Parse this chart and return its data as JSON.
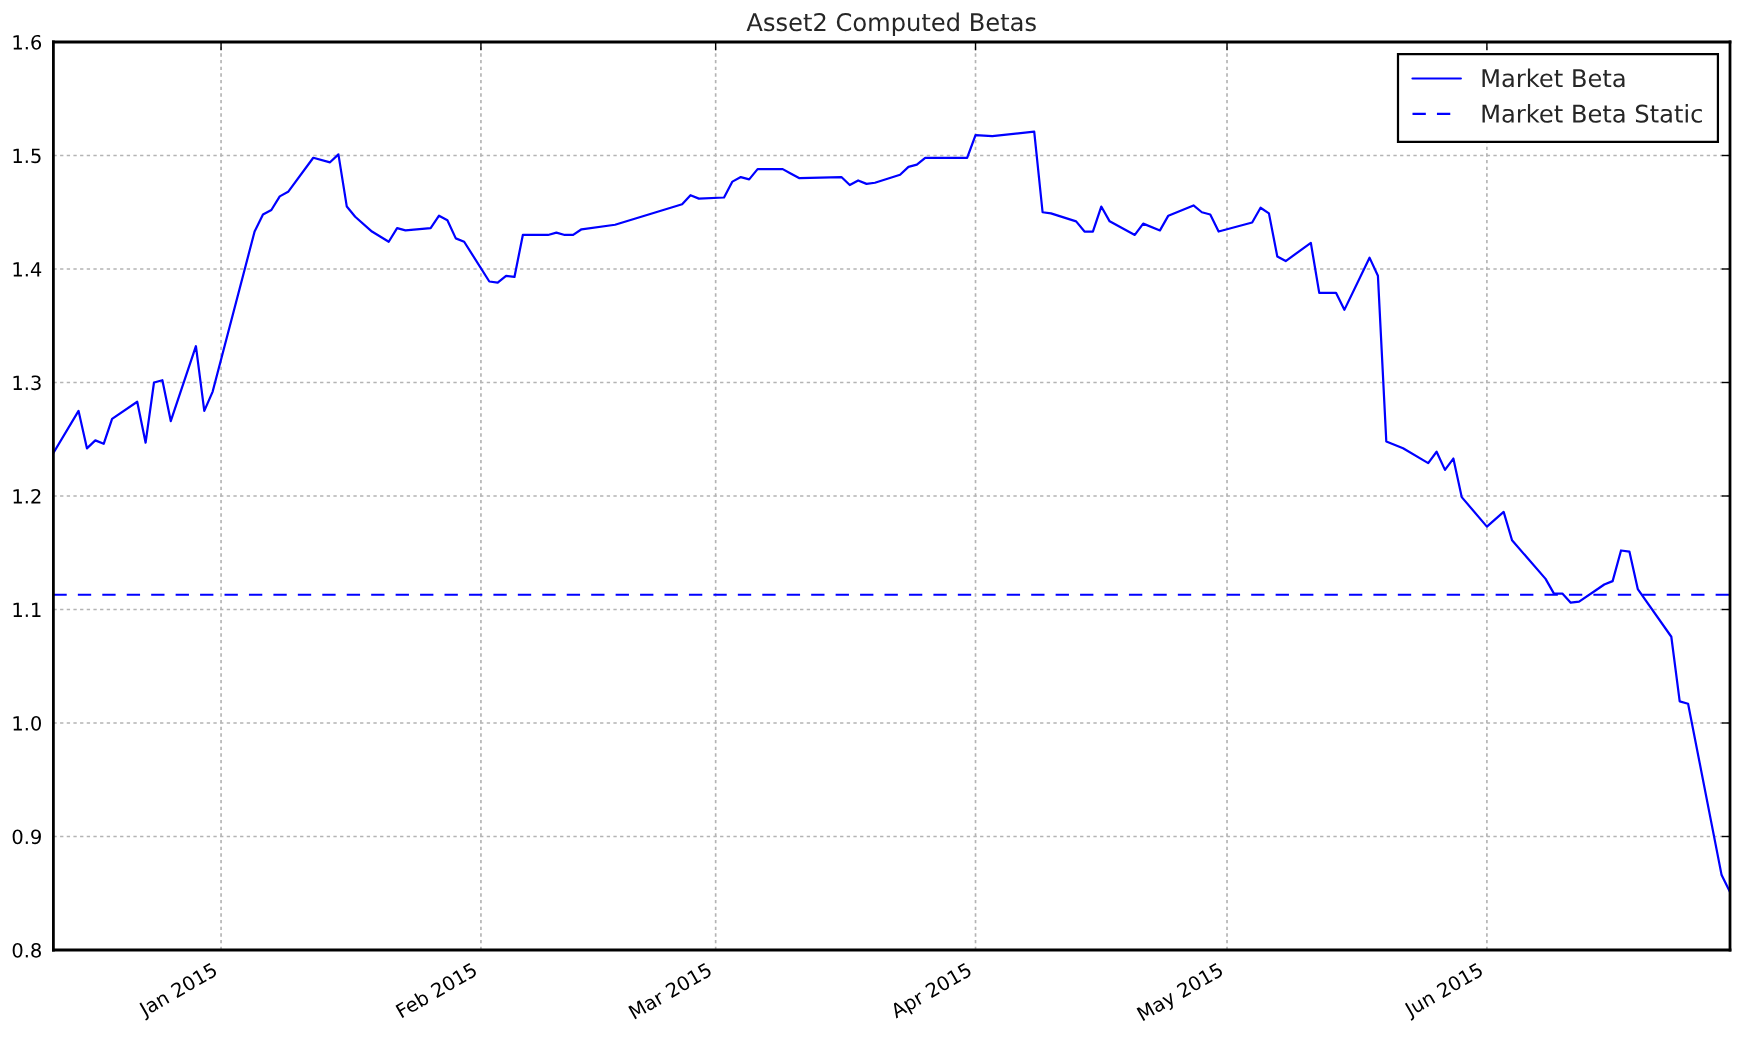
{
  "chart_data": {
    "type": "line",
    "title": "Asset2 Computed Betas",
    "x": [
      "2014-12-12",
      "2014-12-15",
      "2014-12-16",
      "2014-12-17",
      "2014-12-18",
      "2014-12-19",
      "2014-12-22",
      "2014-12-23",
      "2014-12-24",
      "2014-12-25",
      "2014-12-26",
      "2014-12-29",
      "2014-12-30",
      "2014-12-31",
      "2015-01-05",
      "2015-01-06",
      "2015-01-07",
      "2015-01-08",
      "2015-01-09",
      "2015-01-12",
      "2015-01-14",
      "2015-01-15",
      "2015-01-16",
      "2015-01-17",
      "2015-01-19",
      "2015-01-21",
      "2015-01-22",
      "2015-01-23",
      "2015-01-26",
      "2015-01-27",
      "2015-01-28",
      "2015-01-29",
      "2015-01-30",
      "2015-02-02",
      "2015-02-03",
      "2015-02-04",
      "2015-02-05",
      "2015-02-06",
      "2015-02-09",
      "2015-02-10",
      "2015-02-11",
      "2015-02-12",
      "2015-02-13",
      "2015-02-17",
      "2015-02-25",
      "2015-02-26",
      "2015-02-27",
      "2015-03-02",
      "2015-03-03",
      "2015-03-04",
      "2015-03-05",
      "2015-03-06",
      "2015-03-09",
      "2015-03-10",
      "2015-03-11",
      "2015-03-16",
      "2015-03-17",
      "2015-03-18",
      "2015-03-19",
      "2015-03-20",
      "2015-03-23",
      "2015-03-24",
      "2015-03-25",
      "2015-03-26",
      "2015-03-31",
      "2015-04-01",
      "2015-04-03",
      "2015-04-08",
      "2015-04-09",
      "2015-04-10",
      "2015-04-13",
      "2015-04-14",
      "2015-04-15",
      "2015-04-16",
      "2015-04-17",
      "2015-04-20",
      "2015-04-21",
      "2015-04-23",
      "2015-04-24",
      "2015-04-27",
      "2015-04-28",
      "2015-04-29",
      "2015-04-30",
      "2015-05-04",
      "2015-05-05",
      "2015-05-06",
      "2015-05-07",
      "2015-05-08",
      "2015-05-11",
      "2015-05-12",
      "2015-05-14",
      "2015-05-15",
      "2015-05-18",
      "2015-05-19",
      "2015-05-20",
      "2015-05-22",
      "2015-05-25",
      "2015-05-26",
      "2015-05-27",
      "2015-05-28",
      "2015-05-29",
      "2015-06-01",
      "2015-06-03",
      "2015-06-04",
      "2015-06-08",
      "2015-06-09",
      "2015-06-10",
      "2015-06-11",
      "2015-06-12",
      "2015-06-14",
      "2015-06-15",
      "2015-06-16",
      "2015-06-17",
      "2015-06-18",
      "2015-06-19",
      "2015-06-23",
      "2015-06-24",
      "2015-06-25",
      "2015-06-29",
      "2015-06-30"
    ],
    "series": [
      {
        "name": "Market Beta",
        "color": "#0000ff",
        "values": [
          1.238,
          1.275,
          1.242,
          1.249,
          1.246,
          1.268,
          1.283,
          1.247,
          1.3,
          1.302,
          1.266,
          1.332,
          1.275,
          1.292,
          1.433,
          1.448,
          1.452,
          1.464,
          1.468,
          1.498,
          1.494,
          1.501,
          1.455,
          1.446,
          1.433,
          1.424,
          1.436,
          1.434,
          1.436,
          1.447,
          1.443,
          1.427,
          1.424,
          1.389,
          1.388,
          1.394,
          1.393,
          1.43,
          1.43,
          1.432,
          1.43,
          1.43,
          1.435,
          1.439,
          1.457,
          1.465,
          1.462,
          1.463,
          1.477,
          1.481,
          1.479,
          1.488,
          1.488,
          1.484,
          1.48,
          1.481,
          1.474,
          1.478,
          1.475,
          1.476,
          1.483,
          1.49,
          1.492,
          1.498,
          1.498,
          1.518,
          1.517,
          1.521,
          1.45,
          1.449,
          1.442,
          1.433,
          1.433,
          1.455,
          1.442,
          1.43,
          1.44,
          1.434,
          1.447,
          1.456,
          1.45,
          1.448,
          1.433,
          1.441,
          1.454,
          1.449,
          1.411,
          1.407,
          1.423,
          1.379,
          1.379,
          1.364,
          1.41,
          1.394,
          1.248,
          1.242,
          1.229,
          1.239,
          1.223,
          1.233,
          1.199,
          1.173,
          1.186,
          1.161,
          1.127,
          1.114,
          1.114,
          1.106,
          1.107,
          1.117,
          1.122,
          1.125,
          1.152,
          1.151,
          1.118,
          1.076,
          1.019,
          1.017,
          0.866,
          0.851
        ]
      }
    ],
    "ref_lines": [
      {
        "axis": "y",
        "value": 1.113,
        "label": "Market Beta Static",
        "color": "#0000ff",
        "line_style": "dashed"
      }
    ],
    "xlim": [
      "2014-12-12",
      "2015-06-30"
    ],
    "xticks": [
      {
        "value": "2015-01-01",
        "label": "Jan 2015"
      },
      {
        "value": "2015-02-01",
        "label": "Feb 2015"
      },
      {
        "value": "2015-03-01",
        "label": "Mar 2015"
      },
      {
        "value": "2015-04-01",
        "label": "Apr 2015"
      },
      {
        "value": "2015-05-01",
        "label": "May 2015"
      },
      {
        "value": "2015-06-01",
        "label": "Jun 2015"
      }
    ],
    "ylim": [
      0.8,
      1.6
    ],
    "yticks": [
      0.8,
      0.9,
      {
        "value": 1.0,
        "label": "1.0"
      },
      1.1,
      1.2,
      1.3,
      1.4,
      1.5,
      1.6
    ],
    "grid": true,
    "legend": "top right"
  }
}
